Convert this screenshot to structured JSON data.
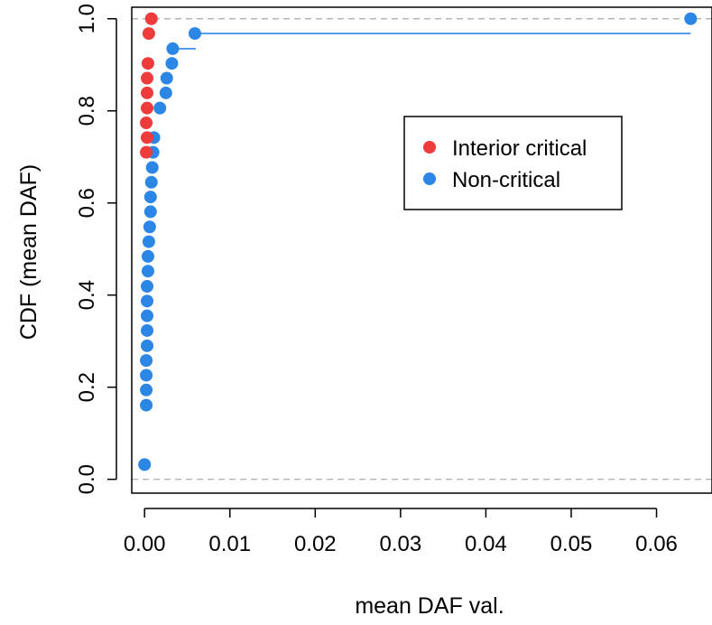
{
  "chart_data": {
    "type": "scatter",
    "title": "",
    "xlabel": "mean DAF val.",
    "ylabel": "CDF (mean DAF)",
    "xlim": [
      -0.0015,
      0.0665
    ],
    "ylim": [
      -0.03,
      1.025
    ],
    "x_ticks": [
      0.0,
      0.01,
      0.02,
      0.03,
      0.04,
      0.05,
      0.06
    ],
    "x_tick_labels": [
      "0.00",
      "0.01",
      "0.02",
      "0.03",
      "0.04",
      "0.05",
      "0.06"
    ],
    "y_ticks": [
      0.0,
      0.2,
      0.4,
      0.6,
      0.8,
      1.0
    ],
    "y_tick_labels": [
      "0.0",
      "0.2",
      "0.4",
      "0.6",
      "0.8",
      "1.0"
    ],
    "grid": false,
    "reference_lines_y": [
      0,
      1
    ],
    "legend": {
      "placement": "right-upper-middle",
      "entries": [
        {
          "label": "Interior critical",
          "color": "#ef3b3b"
        },
        {
          "label": "Non-critical",
          "color": "#2c86e6"
        }
      ]
    },
    "series": [
      {
        "name": "Interior critical",
        "color": "#ef3b3b",
        "step_segments": [],
        "points": [
          {
            "x": 0.0002,
            "y": 0.71
          },
          {
            "x": 0.0003,
            "y": 0.742
          },
          {
            "x": 0.0002,
            "y": 0.774
          },
          {
            "x": 0.0003,
            "y": 0.806
          },
          {
            "x": 0.0003,
            "y": 0.839
          },
          {
            "x": 0.0003,
            "y": 0.871
          },
          {
            "x": 0.0004,
            "y": 0.903
          },
          {
            "x": 0.0005,
            "y": 0.968
          },
          {
            "x": 0.0008,
            "y": 1.0
          }
        ]
      },
      {
        "name": "Non-critical",
        "color": "#2c86e6",
        "step_segments": [
          {
            "x0": 0.003,
            "x1": 0.006,
            "y": 0.935
          },
          {
            "x0": 0.0058,
            "x1": 0.064,
            "y": 0.968
          }
        ],
        "points": [
          {
            "x": 0.0,
            "y": 0.032
          },
          {
            "x": 0.0002,
            "y": 0.161
          },
          {
            "x": 0.0002,
            "y": 0.194
          },
          {
            "x": 0.0002,
            "y": 0.226
          },
          {
            "x": 0.0002,
            "y": 0.258
          },
          {
            "x": 0.0003,
            "y": 0.29
          },
          {
            "x": 0.0003,
            "y": 0.323
          },
          {
            "x": 0.0003,
            "y": 0.355
          },
          {
            "x": 0.0003,
            "y": 0.387
          },
          {
            "x": 0.0003,
            "y": 0.419
          },
          {
            "x": 0.0004,
            "y": 0.452
          },
          {
            "x": 0.0004,
            "y": 0.484
          },
          {
            "x": 0.0005,
            "y": 0.516
          },
          {
            "x": 0.0006,
            "y": 0.548
          },
          {
            "x": 0.0007,
            "y": 0.581
          },
          {
            "x": 0.0007,
            "y": 0.613
          },
          {
            "x": 0.0008,
            "y": 0.645
          },
          {
            "x": 0.0009,
            "y": 0.677
          },
          {
            "x": 0.001,
            "y": 0.71
          },
          {
            "x": 0.0011,
            "y": 0.742
          },
          {
            "x": 0.0018,
            "y": 0.806
          },
          {
            "x": 0.0025,
            "y": 0.839
          },
          {
            "x": 0.0026,
            "y": 0.871
          },
          {
            "x": 0.0032,
            "y": 0.903
          },
          {
            "x": 0.0033,
            "y": 0.935
          },
          {
            "x": 0.0059,
            "y": 0.968
          },
          {
            "x": 0.064,
            "y": 1.0
          }
        ]
      }
    ]
  }
}
